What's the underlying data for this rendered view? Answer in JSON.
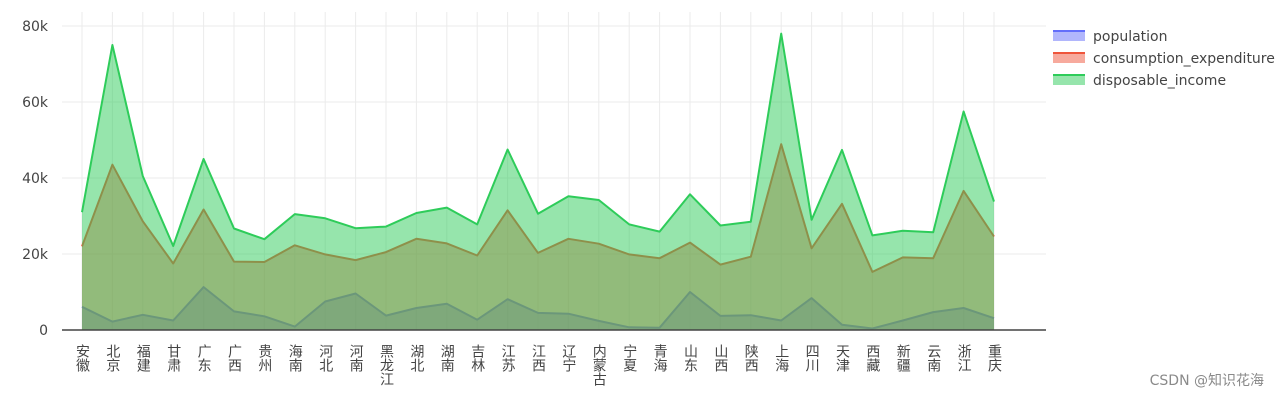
{
  "chart_data": {
    "type": "area",
    "stacked": false,
    "categories": [
      "安徽",
      "北京",
      "福建",
      "甘肃",
      "广东",
      "广西",
      "贵州",
      "海南",
      "河北",
      "河南",
      "黑龙江",
      "湖北",
      "湖南",
      "吉林",
      "江苏",
      "江西",
      "辽宁",
      "内蒙古",
      "宁夏",
      "青海",
      "山东",
      "山西",
      "陕西",
      "上海",
      "四川",
      "天津",
      "西藏",
      "新疆",
      "云南",
      "浙江",
      "重庆"
    ],
    "category_label_orientation": "vertical",
    "series": [
      {
        "name": "population",
        "color": "#636efa",
        "values": [
          6100,
          2200,
          4000,
          2500,
          11300,
          4900,
          3600,
          900,
          7500,
          9600,
          3800,
          5800,
          6900,
          2700,
          8100,
          4500,
          4300,
          2400,
          700,
          600,
          10000,
          3700,
          3900,
          2500,
          8400,
          1400,
          400,
          2500,
          4700,
          5800,
          3100
        ]
      },
      {
        "name": "consumption_expenditure",
        "color": "#ef553b",
        "values": [
          22000,
          43500,
          28600,
          17500,
          31700,
          18000,
          17900,
          22300,
          19900,
          18400,
          20500,
          24000,
          22800,
          19600,
          31500,
          20300,
          24000,
          22700,
          19900,
          18900,
          23000,
          17200,
          19300,
          48900,
          21500,
          33200,
          15300,
          19100,
          18900,
          36600,
          24600
        ]
      },
      {
        "name": "disposable_income",
        "color": "#2ecc5a",
        "values": [
          31000,
          75000,
          40500,
          22100,
          45000,
          26700,
          23900,
          30500,
          29400,
          26800,
          27200,
          30800,
          32200,
          27800,
          47500,
          30600,
          35200,
          34200,
          27800,
          25900,
          35700,
          27500,
          28500,
          78000,
          29000,
          47400,
          24900,
          26100,
          25700,
          57500,
          33800
        ]
      }
    ],
    "yticks": [
      0,
      20000,
      40000,
      60000,
      80000
    ],
    "ytick_labels": [
      "0",
      "20k",
      "40k",
      "60k",
      "80k"
    ],
    "ylim": [
      0,
      80000
    ],
    "grid": true,
    "legend_position": "top-right"
  },
  "watermark": "CSDN @知识花海"
}
